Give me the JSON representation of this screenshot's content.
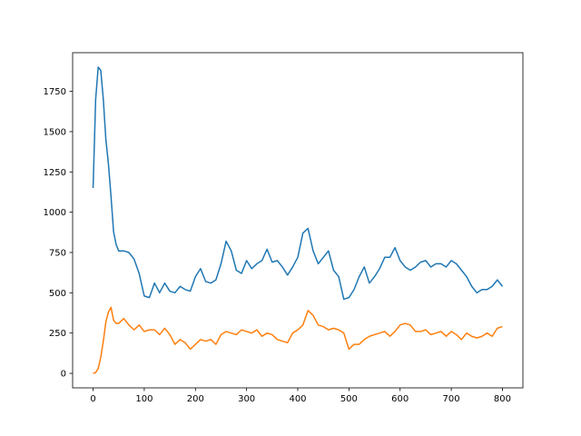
{
  "chart_data": {
    "type": "line",
    "x": [
      0,
      5,
      10,
      15,
      20,
      25,
      30,
      35,
      40,
      45,
      50,
      60,
      70,
      80,
      90,
      100,
      110,
      120,
      130,
      140,
      150,
      160,
      170,
      180,
      190,
      200,
      210,
      220,
      230,
      240,
      250,
      260,
      270,
      280,
      290,
      300,
      310,
      320,
      330,
      340,
      350,
      360,
      370,
      380,
      390,
      400,
      410,
      420,
      430,
      440,
      450,
      460,
      470,
      480,
      490,
      500,
      510,
      520,
      530,
      540,
      550,
      560,
      570,
      580,
      590,
      600,
      610,
      620,
      630,
      640,
      650,
      660,
      670,
      680,
      690,
      700,
      710,
      720,
      730,
      740,
      750,
      760,
      770,
      780,
      790,
      800
    ],
    "series": [
      {
        "color": "#1f77b4",
        "values": [
          1150,
          1700,
          1900,
          1880,
          1700,
          1450,
          1300,
          1100,
          880,
          800,
          760,
          760,
          750,
          710,
          620,
          480,
          470,
          560,
          500,
          560,
          510,
          500,
          540,
          520,
          510,
          600,
          650,
          570,
          560,
          580,
          680,
          820,
          760,
          640,
          620,
          700,
          650,
          680,
          700,
          770,
          690,
          700,
          660,
          610,
          660,
          720,
          870,
          900,
          760,
          680,
          720,
          760,
          640,
          600,
          460,
          470,
          520,
          600,
          660,
          560,
          600,
          650,
          720,
          720,
          780,
          700,
          660,
          640,
          660,
          690,
          700,
          660,
          680,
          680,
          660,
          700,
          680,
          640,
          600,
          540,
          500,
          520,
          520,
          540,
          580,
          540
        ]
      },
      {
        "color": "#ff7f0e",
        "values": [
          0,
          5,
          30,
          100,
          200,
          320,
          380,
          410,
          330,
          310,
          310,
          340,
          300,
          270,
          300,
          260,
          270,
          270,
          240,
          280,
          240,
          180,
          210,
          190,
          150,
          180,
          210,
          200,
          210,
          180,
          240,
          260,
          250,
          240,
          270,
          260,
          250,
          270,
          230,
          250,
          240,
          210,
          200,
          190,
          250,
          270,
          300,
          390,
          360,
          300,
          290,
          270,
          280,
          270,
          250,
          150,
          180,
          180,
          210,
          230,
          240,
          250,
          260,
          230,
          260,
          300,
          310,
          300,
          260,
          260,
          270,
          240,
          250,
          260,
          230,
          260,
          240,
          210,
          250,
          230,
          220,
          230,
          250,
          230,
          280,
          290
        ]
      }
    ],
    "xlim": [
      -40,
      840
    ],
    "ylim": [
      -90,
      1990
    ],
    "xticks": [
      0,
      100,
      200,
      300,
      400,
      500,
      600,
      700,
      800
    ],
    "yticks": [
      0,
      250,
      500,
      750,
      1000,
      1250,
      1500,
      1750
    ]
  }
}
